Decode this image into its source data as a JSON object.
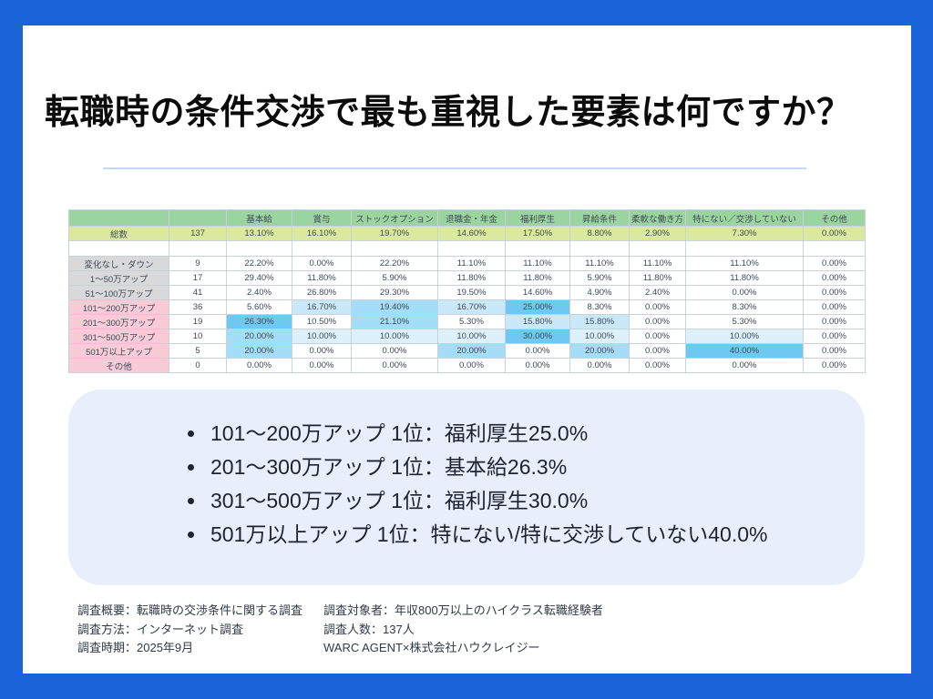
{
  "slide_title": "転職時の条件交渉で最も重視した要素は何ですか？",
  "colors": {
    "frame_blue": "#1b63d9",
    "box_bg": "#e8eefa",
    "header_green": "#9bd49e",
    "total_yellow_green": "#dbe9a0",
    "label_gray": "#d9d9d9",
    "label_pink": "#f8ccd6",
    "hl_strong": "#6ec8f1",
    "hl_medium": "#a4ddf7",
    "hl_light": "#c9e9fa",
    "hl_xlight": "#ddf0fc"
  },
  "table": {
    "column_headers": [
      "",
      "",
      "基本給",
      "賞与",
      "ストックオプション",
      "退職金・年金",
      "福利厚生",
      "昇給条件",
      "柔軟な働き方",
      "特にない／交渉していない",
      "その他"
    ],
    "total_row": {
      "label": "総数",
      "count": "137",
      "values": [
        "13.10%",
        "16.10%",
        "19.70%",
        "14.60%",
        "17.50%",
        "8.80%",
        "2.90%",
        "7.30%",
        "0.00%"
      ]
    },
    "rows": [
      {
        "label": "変化なし・ダウン",
        "group": "gray",
        "count": "9",
        "values": [
          "22.20%",
          "0.00%",
          "22.20%",
          "11.10%",
          "11.10%",
          "11.10%",
          "11.10%",
          "11.10%",
          "0.00%"
        ],
        "highlights": [
          null,
          null,
          null,
          null,
          null,
          null,
          null,
          null,
          null
        ]
      },
      {
        "label": "1〜50万アップ",
        "group": "gray",
        "count": "17",
        "values": [
          "29.40%",
          "11.80%",
          "5.90%",
          "11.80%",
          "11.80%",
          "5.90%",
          "11.80%",
          "11.80%",
          "0.00%"
        ],
        "highlights": [
          null,
          null,
          null,
          null,
          null,
          null,
          null,
          null,
          null
        ]
      },
      {
        "label": "51〜100万アップ",
        "group": "gray",
        "count": "41",
        "values": [
          "2.40%",
          "26.80%",
          "29.30%",
          "19.50%",
          "14.60%",
          "4.90%",
          "2.40%",
          "0.00%",
          "0.00%"
        ],
        "highlights": [
          null,
          null,
          null,
          null,
          null,
          null,
          null,
          null,
          null
        ]
      },
      {
        "label": "101〜200万アップ",
        "group": "pink",
        "count": "36",
        "values": [
          "5.60%",
          "16.70%",
          "19.40%",
          "16.70%",
          "25.00%",
          "8.30%",
          "0.00%",
          "8.30%",
          "0.00%"
        ],
        "highlights": [
          null,
          "l",
          "m",
          "l",
          "s",
          null,
          null,
          null,
          null
        ]
      },
      {
        "label": "201〜300万アップ",
        "group": "pink",
        "count": "19",
        "values": [
          "26.30%",
          "10.50%",
          "21.10%",
          "5.30%",
          "15.80%",
          "15.80%",
          "0.00%",
          "5.30%",
          "0.00%"
        ],
        "highlights": [
          "s",
          null,
          "m",
          null,
          "l",
          "l",
          null,
          null,
          null
        ]
      },
      {
        "label": "301〜500万アップ",
        "group": "pink",
        "count": "10",
        "values": [
          "20.00%",
          "10.00%",
          "10.00%",
          "10.00%",
          "30.00%",
          "10.00%",
          "0.00%",
          "10.00%",
          "0.00%"
        ],
        "highlights": [
          "m",
          "xl",
          "xl",
          "xl",
          "s",
          "xl",
          null,
          "xl",
          null
        ]
      },
      {
        "label": "501万以上アップ",
        "group": "pink",
        "count": "5",
        "values": [
          "20.00%",
          "0.00%",
          "0.00%",
          "20.00%",
          "0.00%",
          "20.00%",
          "0.00%",
          "40.00%",
          "0.00%"
        ],
        "highlights": [
          "m",
          null,
          null,
          "m",
          null,
          "m",
          null,
          "s",
          null
        ]
      },
      {
        "label": "その他",
        "group": "pink",
        "count": "0",
        "values": [
          "0.00%",
          "0.00%",
          "0.00%",
          "0.00%",
          "0.00%",
          "0.00%",
          "0.00%",
          "0.00%",
          "0.00%"
        ],
        "highlights": [
          null,
          null,
          null,
          null,
          null,
          null,
          null,
          null,
          null
        ]
      }
    ]
  },
  "summary": {
    "items": [
      "101〜200万アップ 1位：福利厚生25.0%",
      "201〜300万アップ 1位：基本給26.3%",
      "301〜500万アップ 1位：福利厚生30.0%",
      "501万以上アップ 1位：特にない/特に交渉していない40.0%"
    ]
  },
  "footer": {
    "left": [
      "調査概要：転職時の交渉条件に関する調査",
      "調査方法：インターネット調査",
      "調査時期：2025年9月"
    ],
    "right": [
      "調査対象者：年収800万以上のハイクラス転職経験者",
      "調査人数：137人",
      "WARC AGENT×株式会社ハウクレイジー"
    ]
  }
}
